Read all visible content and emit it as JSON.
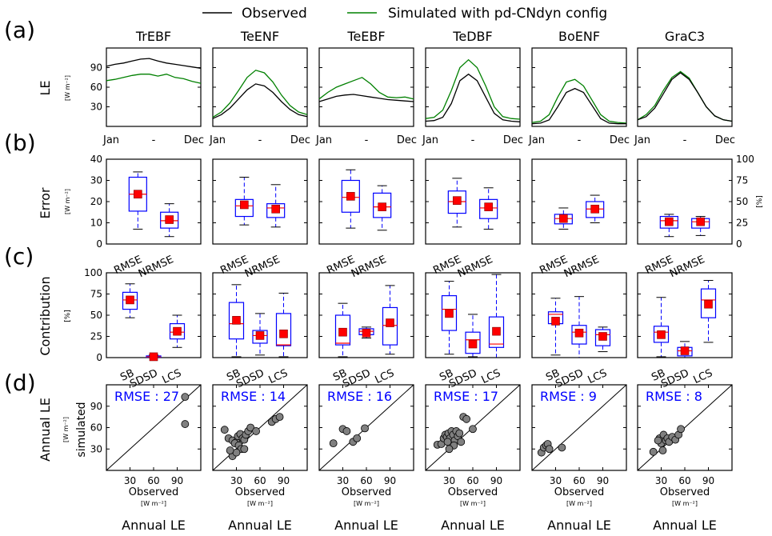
{
  "legend": {
    "observed_label": "Observed",
    "simulated_label": "Simulated with pd-CNdyn config",
    "observed_color": "#000000",
    "simulated_color": "#008000"
  },
  "panel_labels": [
    "(a)",
    "(b)",
    "(c)",
    "(d)"
  ],
  "row_labels": {
    "a": "LE",
    "a_unit": "[W m⁻²]",
    "b": "Error",
    "b_unit": "[W m⁻²]",
    "b_right_unit": "[%]",
    "c": "Contribution",
    "c_unit": "[%]",
    "d": "Annual LE",
    "d_unit": "[W m⁻²]",
    "d_sub": "simulated"
  },
  "bottom": {
    "xlabel": "Observed",
    "xunit": "[W m⁻²]",
    "footer": "Annual LE"
  },
  "chart_data": {
    "type": "multi-panel",
    "pfts": [
      "TrEBF",
      "TeENF",
      "TeEBF",
      "TeDBF",
      "BoENF",
      "GraC3"
    ],
    "row_a": {
      "type": "line",
      "x_ticks": [
        "Jan",
        "-",
        "Dec"
      ],
      "y_ticks": [
        30,
        60,
        90
      ],
      "ylim": [
        0,
        120
      ],
      "panels": [
        {
          "observed": [
            92,
            95,
            97,
            100,
            103,
            104,
            100,
            97,
            95,
            93,
            91,
            89
          ],
          "simulated": [
            70,
            72,
            75,
            78,
            80,
            80,
            77,
            80,
            75,
            73,
            69,
            66
          ]
        },
        {
          "observed": [
            12,
            18,
            28,
            42,
            56,
            65,
            62,
            52,
            38,
            26,
            18,
            15
          ],
          "simulated": [
            14,
            22,
            36,
            55,
            75,
            86,
            82,
            68,
            48,
            32,
            22,
            18
          ]
        },
        {
          "observed": [
            38,
            42,
            46,
            48,
            49,
            47,
            45,
            43,
            41,
            40,
            39,
            38
          ],
          "simulated": [
            42,
            52,
            60,
            65,
            70,
            75,
            65,
            52,
            45,
            44,
            45,
            42
          ]
        },
        {
          "observed": [
            8,
            9,
            14,
            35,
            70,
            80,
            70,
            45,
            20,
            10,
            8,
            7
          ],
          "simulated": [
            12,
            14,
            25,
            55,
            90,
            102,
            90,
            62,
            30,
            15,
            12,
            11
          ]
        },
        {
          "observed": [
            4,
            5,
            10,
            30,
            52,
            58,
            52,
            32,
            12,
            5,
            4,
            4
          ],
          "simulated": [
            6,
            8,
            18,
            45,
            68,
            72,
            62,
            40,
            18,
            8,
            6,
            5
          ]
        },
        {
          "observed": [
            10,
            15,
            28,
            50,
            72,
            82,
            72,
            52,
            30,
            16,
            10,
            8
          ],
          "simulated": [
            10,
            18,
            32,
            55,
            75,
            84,
            74,
            52,
            30,
            16,
            10,
            8
          ]
        }
      ]
    },
    "row_b": {
      "type": "box",
      "categories": [
        "RMSE",
        "NRMSE"
      ],
      "ylim_left": [
        0,
        40
      ],
      "y_ticks_left": [
        0,
        10,
        20,
        30,
        40
      ],
      "ylim_right": [
        0,
        100
      ],
      "y_ticks_right": [
        0,
        25,
        50,
        75,
        100
      ],
      "panels": [
        [
          {
            "min": 7,
            "q1": 15.5,
            "median": 23.5,
            "q3": 31.5,
            "max": 34,
            "mean": 23.5
          },
          {
            "min": 3.5,
            "q1": 7.5,
            "median": 11,
            "q3": 15,
            "max": 19,
            "mean": 11.5
          }
        ],
        [
          {
            "min": 9,
            "q1": 13,
            "median": 18,
            "q3": 21,
            "max": 31.5,
            "mean": 18.5
          },
          {
            "min": 8,
            "q1": 12.5,
            "median": 17,
            "q3": 19,
            "max": 28,
            "mean": 16.5
          }
        ],
        [
          {
            "min": 7.5,
            "q1": 15,
            "median": 22,
            "q3": 30,
            "max": 35,
            "mean": 22.5
          },
          {
            "min": 6.5,
            "q1": 12.5,
            "median": 17.5,
            "q3": 24,
            "max": 27.5,
            "mean": 17.5
          }
        ],
        [
          {
            "min": 8,
            "q1": 14.5,
            "median": 20,
            "q3": 25,
            "max": 31,
            "mean": 20.5
          },
          {
            "min": 7,
            "q1": 12,
            "median": 17,
            "q3": 21,
            "max": 26.5,
            "mean": 17.5
          }
        ],
        [
          {
            "min": 7,
            "q1": 9.5,
            "median": 12,
            "q3": 14,
            "max": 17,
            "mean": 12
          },
          {
            "min": 10,
            "q1": 12.5,
            "median": 16.5,
            "q3": 20,
            "max": 23,
            "mean": 16.5
          }
        ],
        [
          {
            "min": 3.5,
            "q1": 7.5,
            "median": 11,
            "q3": 13,
            "max": 14,
            "mean": 10.5
          },
          {
            "min": 4,
            "q1": 7.5,
            "median": 10.5,
            "q3": 12,
            "max": 13,
            "mean": 10.5
          }
        ]
      ]
    },
    "row_c": {
      "type": "box",
      "categories": [
        "SB",
        "SDSD",
        "LCS"
      ],
      "ylim": [
        0,
        100
      ],
      "y_ticks": [
        0,
        25,
        50,
        75,
        100
      ],
      "panels": [
        [
          {
            "min": 47,
            "q1": 57,
            "median": 68,
            "q3": 77,
            "max": 87,
            "mean": 68
          },
          {
            "min": 0,
            "q1": 0.5,
            "median": 1,
            "q3": 2,
            "max": 3,
            "mean": 1
          },
          {
            "min": 12,
            "q1": 22,
            "median": 30,
            "q3": 40,
            "max": 50,
            "mean": 31
          }
        ],
        [
          {
            "min": 1,
            "q1": 22,
            "median": 40,
            "q3": 65,
            "max": 86,
            "mean": 44
          },
          {
            "min": 3,
            "q1": 17,
            "median": 26,
            "q3": 32,
            "max": 52,
            "mean": 26
          },
          {
            "min": 1,
            "q1": 14,
            "median": 15,
            "q3": 52,
            "max": 76,
            "mean": 28
          }
        ],
        [
          {
            "min": 1,
            "q1": 15,
            "median": 17,
            "q3": 50,
            "max": 64,
            "mean": 30
          },
          {
            "min": 23,
            "q1": 27,
            "median": 31,
            "q3": 34,
            "max": 36,
            "mean": 29
          },
          {
            "min": 4,
            "q1": 15,
            "median": 38,
            "q3": 59,
            "max": 85,
            "mean": 41
          }
        ],
        [
          {
            "min": 4,
            "q1": 32,
            "median": 57,
            "q3": 73,
            "max": 90,
            "mean": 52
          },
          {
            "min": 1,
            "q1": 5,
            "median": 21,
            "q3": 30,
            "max": 51,
            "mean": 16
          },
          {
            "min": 0,
            "q1": 12,
            "median": 16,
            "q3": 48,
            "max": 98,
            "mean": 31
          }
        ],
        [
          {
            "min": 3,
            "q1": 40,
            "median": 51,
            "q3": 54,
            "max": 70,
            "mean": 43
          },
          {
            "min": 0,
            "q1": 16,
            "median": 30,
            "q3": 38,
            "max": 72,
            "mean": 29
          },
          {
            "min": 7,
            "q1": 14,
            "median": 27,
            "q3": 33,
            "max": 36,
            "mean": 25
          }
        ],
        [
          {
            "min": 1,
            "q1": 18,
            "median": 30,
            "q3": 37,
            "max": 71,
            "mean": 27
          },
          {
            "min": 0,
            "q1": 2,
            "median": 8,
            "q3": 12,
            "max": 19,
            "mean": 8
          },
          {
            "min": 18,
            "q1": 47,
            "median": 68,
            "q3": 81,
            "max": 91,
            "mean": 63
          }
        ]
      ]
    },
    "row_d": {
      "type": "scatter",
      "xlim": [
        0,
        120
      ],
      "ylim": [
        0,
        120
      ],
      "ticks": [
        30,
        60,
        90
      ],
      "panels": [
        {
          "rmse_label": "RMSE : 27",
          "points": [
            [
              100,
              103
            ],
            [
              100,
              65
            ]
          ]
        },
        {
          "rmse_label": "RMSE : 14",
          "points": [
            [
              15,
              57
            ],
            [
              20,
              45
            ],
            [
              25,
              42
            ],
            [
              30,
              40
            ],
            [
              32,
              48
            ],
            [
              35,
              51
            ],
            [
              38,
              45
            ],
            [
              40,
              43
            ],
            [
              42,
              50
            ],
            [
              45,
              55
            ],
            [
              48,
              60
            ],
            [
              28,
              38
            ],
            [
              33,
              35
            ],
            [
              36,
              30
            ],
            [
              25,
              20
            ],
            [
              30,
              25
            ],
            [
              40,
              30
            ],
            [
              55,
              55
            ],
            [
              75,
              68
            ],
            [
              80,
              72
            ],
            [
              85,
              75
            ],
            [
              22,
              28
            ]
          ]
        },
        {
          "rmse_label": "RMSE : 16",
          "points": [
            [
              18,
              38
            ],
            [
              30,
              58
            ],
            [
              35,
              55
            ],
            [
              43,
              40
            ],
            [
              48,
              45
            ],
            [
              58,
              59
            ]
          ]
        },
        {
          "rmse_label": "RMSE : 17",
          "points": [
            [
              15,
              36
            ],
            [
              20,
              37
            ],
            [
              23,
              45
            ],
            [
              25,
              50
            ],
            [
              27,
              47
            ],
            [
              29,
              52
            ],
            [
              31,
              45
            ],
            [
              33,
              55
            ],
            [
              35,
              50
            ],
            [
              37,
              42
            ],
            [
              39,
              55
            ],
            [
              41,
              48
            ],
            [
              43,
              52
            ],
            [
              45,
              40
            ],
            [
              48,
              75
            ],
            [
              52,
              72
            ],
            [
              60,
              58
            ],
            [
              28,
              40
            ],
            [
              36,
              35
            ],
            [
              30,
              30
            ]
          ]
        },
        {
          "rmse_label": "RMSE : 9",
          "points": [
            [
              12,
              25
            ],
            [
              15,
              32
            ],
            [
              18,
              35
            ],
            [
              20,
              37
            ],
            [
              22,
              30
            ],
            [
              38,
              32
            ]
          ]
        },
        {
          "rmse_label": "RMSE : 8",
          "points": [
            [
              20,
              26
            ],
            [
              28,
              45
            ],
            [
              30,
              38
            ],
            [
              32,
              28
            ],
            [
              33,
              50
            ],
            [
              36,
              42
            ],
            [
              38,
              45
            ],
            [
              40,
              40
            ],
            [
              44,
              47
            ],
            [
              48,
              43
            ],
            [
              52,
              50
            ],
            [
              55,
              58
            ],
            [
              26,
              42
            ]
          ]
        }
      ]
    }
  }
}
